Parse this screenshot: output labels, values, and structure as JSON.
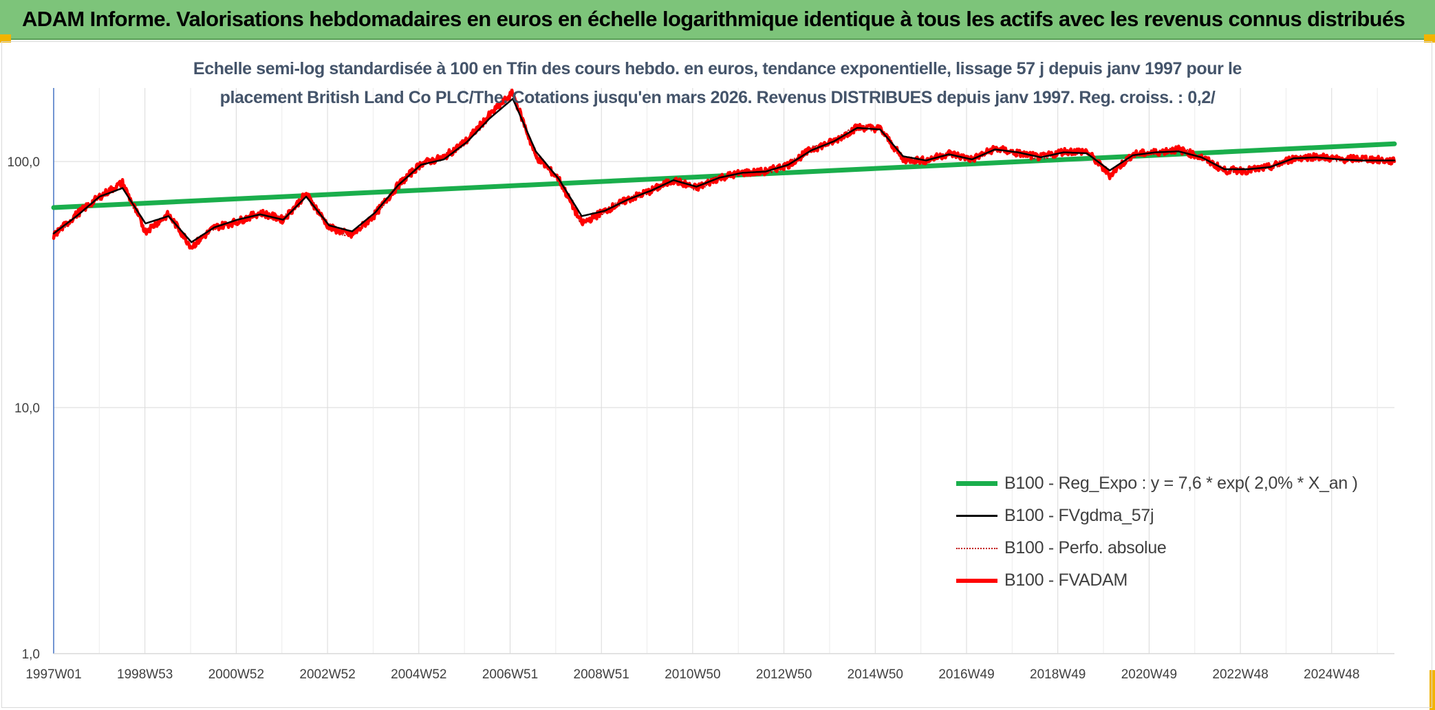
{
  "banner": {
    "title": "ADAM Informe. Valorisations hebdomadaires en euros en échelle logarithmique identique à tous les actifs avec les revenus connus distribués"
  },
  "colors": {
    "banner_bg": "#7dc47a",
    "accent_corner": "#f2b400",
    "trend": "#1aae4c",
    "smoothed": "#000000",
    "perf": "#c00000",
    "fvadam": "#ff0000"
  },
  "chart_data": {
    "type": "line",
    "title_lines": [
      "Echelle semi-log standardisée à 100 en Tfin des cours hebdo. en euros, tendance exponentielle, lissage 57 j depuis janv 1997 pour le",
      "placement British Land Co PLC/The. Cotations jusqu'en mars 2026. Revenus DISTRIBUES depuis janv 1997. Reg. croiss. : 0,2/"
    ],
    "y_scale": "log",
    "ylim": [
      1,
      200
    ],
    "y_ticks": [
      "1,0",
      "10,0",
      "100,0"
    ],
    "x_range": [
      1997.0,
      2026.2
    ],
    "x_tick_labels": [
      "1997W01",
      "1998W53",
      "2000W52",
      "2002W52",
      "2004W52",
      "2006W51",
      "2008W51",
      "2010W50",
      "2012W50",
      "2014W50",
      "2016W49",
      "2018W49",
      "2020W49",
      "2022W48",
      "2024W48"
    ],
    "grid": true,
    "legend_position": "bottom-right",
    "series": [
      {
        "name": "B100 - Reg_Expo : y = 7,6 * exp( 2,0% *  X_an )",
        "style": "trend",
        "x": [
          1997.0,
          2026.2
        ],
        "y": [
          65,
          118
        ]
      },
      {
        "name": "B100 - FVgdma_57j",
        "style": "smoothed",
        "x": [
          1997.0,
          1997.5,
          1998.0,
          1998.5,
          1999.0,
          1999.5,
          2000.0,
          2000.5,
          2001.0,
          2001.5,
          2002.0,
          2002.5,
          2003.0,
          2003.5,
          2004.0,
          2004.5,
          2005.0,
          2005.5,
          2006.0,
          2006.5,
          2007.0,
          2007.5,
          2008.0,
          2008.5,
          2009.0,
          2009.5,
          2010.0,
          2010.5,
          2011.0,
          2011.5,
          2012.0,
          2012.5,
          2013.0,
          2013.5,
          2014.0,
          2014.5,
          2015.0,
          2015.5,
          2016.0,
          2016.5,
          2017.0,
          2017.5,
          2018.0,
          2018.5,
          2019.0,
          2019.5,
          2020.0,
          2020.5,
          2021.0,
          2021.5,
          2022.0,
          2022.5,
          2023.0,
          2023.5,
          2024.0,
          2024.5,
          2025.0,
          2025.5,
          2026.2
        ],
        "y": [
          51,
          60,
          72,
          78,
          56,
          60,
          47,
          54,
          58,
          61,
          58,
          72,
          55,
          52,
          62,
          80,
          97,
          102,
          120,
          150,
          180,
          110,
          85,
          60,
          63,
          70,
          76,
          84,
          79,
          86,
          90,
          91,
          97,
          111,
          121,
          137,
          135,
          105,
          101,
          107,
          102,
          112,
          109,
          104,
          109,
          108,
          92,
          106,
          109,
          110,
          104,
          93,
          93,
          95,
          103,
          104,
          102,
          101,
          101
        ]
      },
      {
        "name": "B100 - Perfo. absolue",
        "style": "perf",
        "x": [
          1997.0,
          1997.5,
          1998.0,
          1998.5,
          1999.0,
          1999.5,
          2000.0,
          2000.5,
          2001.0,
          2001.5,
          2002.0,
          2002.5,
          2003.0,
          2003.5,
          2004.0,
          2004.5,
          2005.0,
          2005.5,
          2006.0,
          2006.5,
          2007.0,
          2007.5,
          2008.0,
          2008.5,
          2009.0,
          2009.5,
          2010.0,
          2010.5,
          2011.0,
          2011.5,
          2012.0,
          2012.5,
          2013.0,
          2013.5,
          2014.0,
          2014.5,
          2015.0,
          2015.5,
          2016.0,
          2016.5,
          2017.0,
          2017.5,
          2018.0,
          2018.5,
          2019.0,
          2019.5,
          2020.0,
          2020.5,
          2021.0,
          2021.5,
          2022.0,
          2022.5,
          2023.0,
          2023.5,
          2024.0,
          2024.5,
          2025.0,
          2025.5,
          2026.2
        ],
        "y": [
          50,
          61,
          72,
          82,
          52,
          61,
          45,
          54,
          57,
          62,
          58,
          74,
          54,
          50,
          61,
          80,
          98,
          104,
          122,
          155,
          190,
          105,
          85,
          56,
          63,
          70,
          76,
          84,
          78,
          86,
          90,
          91,
          97,
          112,
          121,
          138,
          136,
          102,
          101,
          108,
          102,
          113,
          108,
          104,
          110,
          110,
          88,
          107,
          109,
          112,
          104,
          92,
          92,
          95,
          103,
          105,
          102,
          103,
          100
        ]
      },
      {
        "name": "B100 - FVADAM",
        "style": "fvadam",
        "x": [
          1997.0,
          1997.5,
          1998.0,
          1998.5,
          1999.0,
          1999.5,
          2000.0,
          2000.5,
          2001.0,
          2001.5,
          2002.0,
          2002.5,
          2003.0,
          2003.5,
          2004.0,
          2004.5,
          2005.0,
          2005.5,
          2006.0,
          2006.5,
          2007.0,
          2007.5,
          2008.0,
          2008.5,
          2009.0,
          2009.5,
          2010.0,
          2010.5,
          2011.0,
          2011.5,
          2012.0,
          2012.5,
          2013.0,
          2013.5,
          2014.0,
          2014.5,
          2015.0,
          2015.5,
          2016.0,
          2016.5,
          2017.0,
          2017.5,
          2018.0,
          2018.5,
          2019.0,
          2019.5,
          2020.0,
          2020.5,
          2021.0,
          2021.5,
          2022.0,
          2022.5,
          2023.0,
          2023.5,
          2024.0,
          2024.5,
          2025.0,
          2025.5,
          2026.2
        ],
        "y": [
          50,
          61,
          72,
          82,
          52,
          61,
          45,
          54,
          57,
          62,
          58,
          74,
          54,
          50,
          61,
          80,
          98,
          104,
          122,
          155,
          190,
          105,
          85,
          56,
          63,
          70,
          76,
          84,
          78,
          86,
          90,
          91,
          97,
          112,
          121,
          138,
          136,
          102,
          101,
          108,
          102,
          113,
          108,
          104,
          110,
          110,
          88,
          107,
          109,
          112,
          104,
          92,
          92,
          95,
          103,
          105,
          102,
          103,
          100
        ]
      }
    ]
  }
}
